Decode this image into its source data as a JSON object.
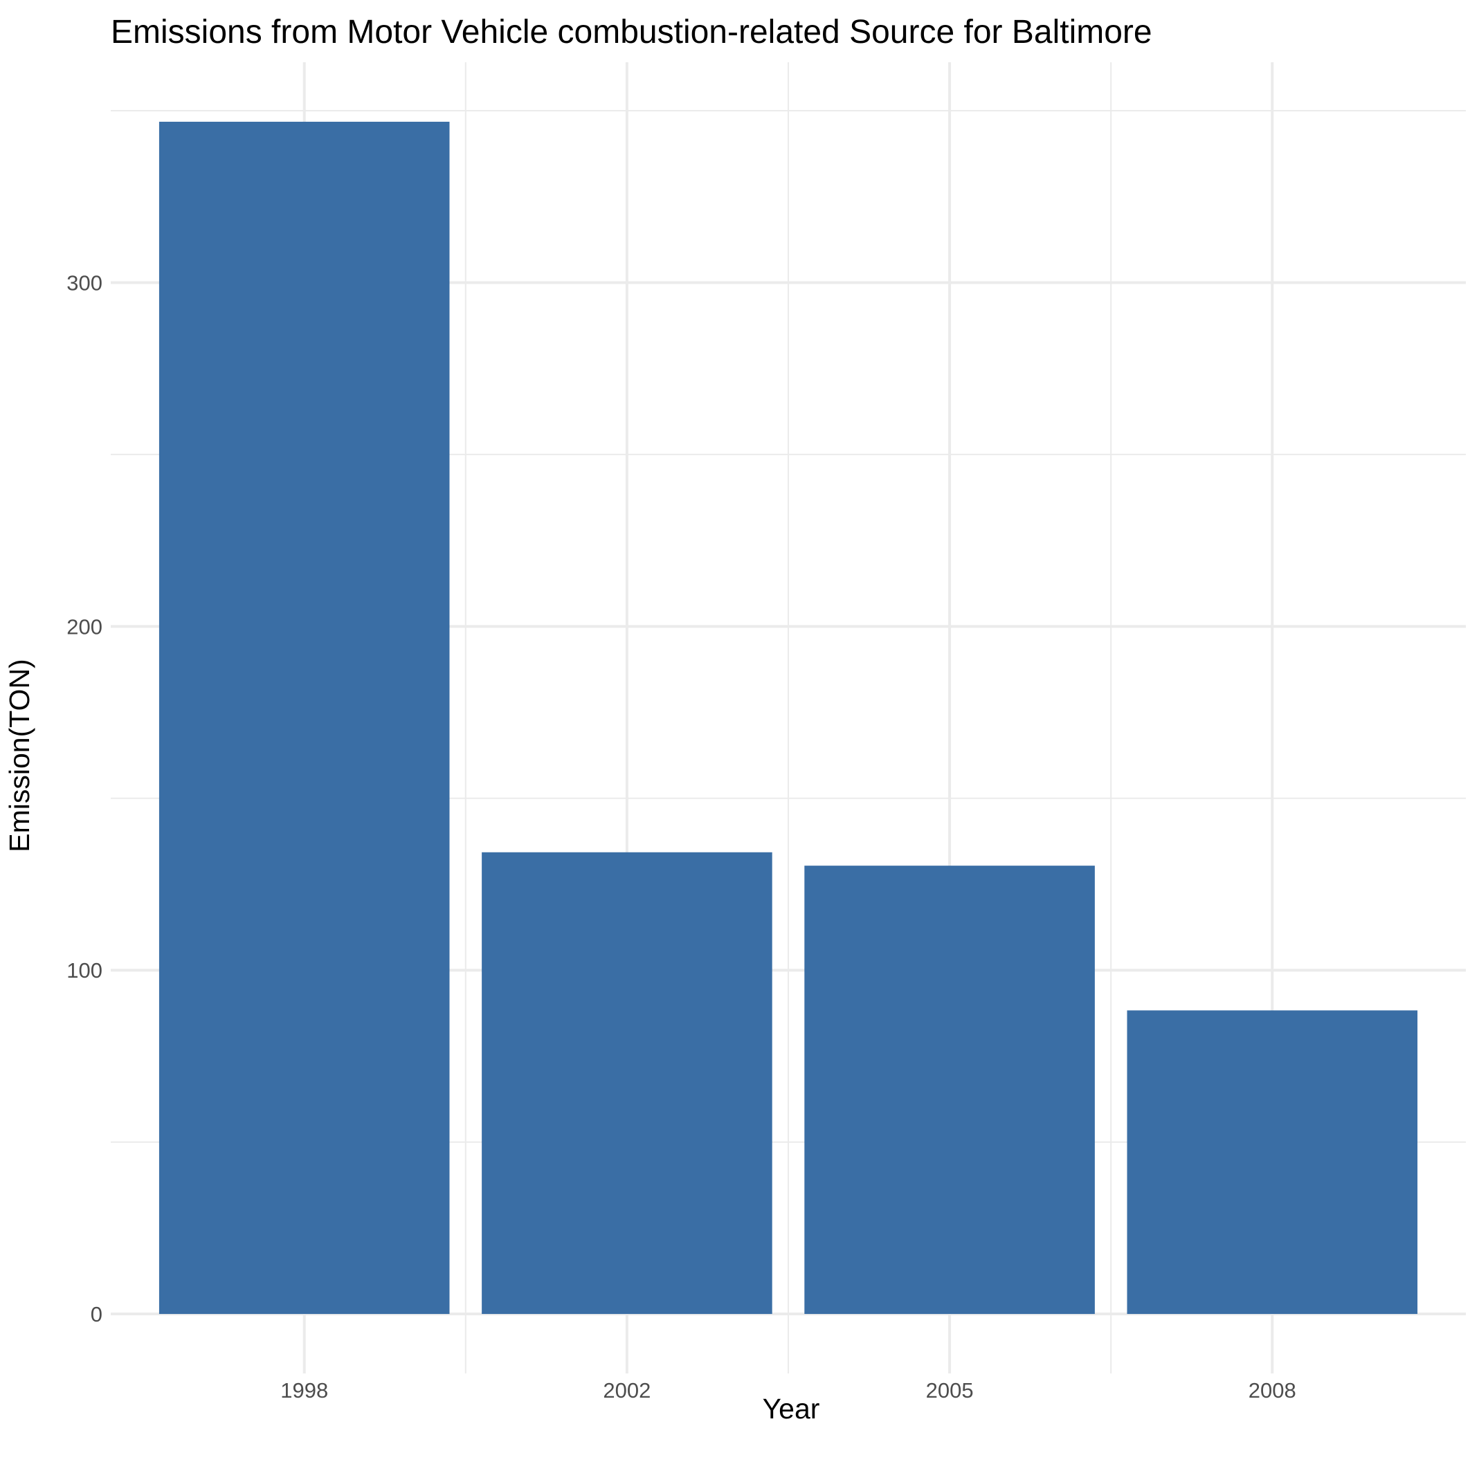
{
  "chart_data": {
    "type": "bar",
    "title": "Emissions from Motor Vehicle combustion-related Source for Baltimore",
    "xlabel": "Year",
    "ylabel": "Emission(TON)",
    "categories": [
      "1998",
      "2002",
      "2005",
      "2008"
    ],
    "values": [
      346.8,
      134.3,
      130.4,
      88.3
    ],
    "ylim": [
      -17.3,
      364.1
    ],
    "y_ticks": [
      "0",
      "100",
      "200",
      "300"
    ],
    "x_ticks": [
      "1998",
      "2002",
      "2005",
      "2008"
    ],
    "grid": true,
    "legend": "none",
    "bar_color": "#3a6ea5",
    "grid_color": "#ebebeb"
  }
}
